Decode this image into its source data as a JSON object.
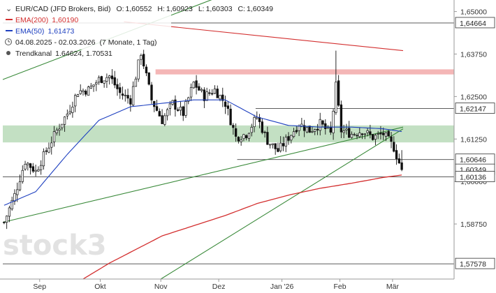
{
  "chart_data": {
    "type": "candlestick",
    "title": "EUR/CAD (JFD Brokers, Bid)",
    "ohlc": {
      "o_label": "O:",
      "o": "1,60552",
      "h_label": "H:",
      "h": "1,60923",
      "l_label": "L:",
      "l": "1,60303",
      "c_label": "C:",
      "c": "1,60349"
    },
    "period": "04.08.2025 - 02.03.2026",
    "period_note": "(7 Monate, 1 Tag)",
    "legend": [
      {
        "name": "EMA(200)",
        "value": "1,60190",
        "color": "#d32f2f"
      },
      {
        "name": "EMA(50)",
        "value": "1,61473",
        "color": "#1e40c0"
      },
      {
        "name": "Trendkanal",
        "value": "1.64624, 1.70531",
        "color": "#555555"
      }
    ],
    "y_ticks": [
      "1,65000",
      "1,63750",
      "1,62500",
      "1,61250",
      "1,60000",
      "1,58750"
    ],
    "y_tick_values": [
      1.65,
      1.6375,
      1.625,
      1.6125,
      1.6,
      1.5875
    ],
    "ylim": [
      1.5713,
      1.6534
    ],
    "x_ticks": [
      "Sep",
      "Okt",
      "Nov",
      "Dez",
      "Jan '26",
      "Feb",
      "Mär"
    ],
    "x_tick_index": [
      14,
      37,
      60,
      82,
      106,
      128,
      148
    ],
    "n_bars": 152,
    "level_labels": [
      {
        "text": "1,64664",
        "value": 1.64664
      },
      {
        "text": "1,62147",
        "value": 1.62147
      },
      {
        "text": "1,60646",
        "value": 1.60646
      },
      {
        "text": "1,60349",
        "value": 1.60349
      },
      {
        "text": "1,60136",
        "value": 1.60136
      },
      {
        "text": "1,57578",
        "value": 1.57578
      }
    ],
    "levels_x_start": [
      {
        "value": 1.64664,
        "start": 0
      },
      {
        "value": 1.62147,
        "start": 96
      },
      {
        "value": 1.60646,
        "start": 89
      },
      {
        "value": 1.60136,
        "start": 0
      },
      {
        "value": 1.57578,
        "start": 0
      }
    ],
    "zones": [
      {
        "from": 1.633,
        "to": 1.6315,
        "start": 58,
        "color": "#f4b6b6"
      },
      {
        "from": 1.6165,
        "to": 1.6115,
        "start": 0,
        "color": "#c3e0c3"
      }
    ],
    "close_anchors": [
      [
        0,
        1.588
      ],
      [
        4,
        1.596
      ],
      [
        8,
        1.606
      ],
      [
        12,
        1.603
      ],
      [
        16,
        1.609
      ],
      [
        20,
        1.615
      ],
      [
        24,
        1.62
      ],
      [
        28,
        1.6265
      ],
      [
        32,
        1.627
      ],
      [
        36,
        1.63
      ],
      [
        40,
        1.631
      ],
      [
        44,
        1.626
      ],
      [
        48,
        1.624
      ],
      [
        52,
        1.638
      ],
      [
        56,
        1.624
      ],
      [
        60,
        1.618
      ],
      [
        64,
        1.623
      ],
      [
        68,
        1.62
      ],
      [
        72,
        1.629
      ],
      [
        76,
        1.625
      ],
      [
        80,
        1.627
      ],
      [
        84,
        1.623
      ],
      [
        88,
        1.613
      ],
      [
        92,
        1.614
      ],
      [
        96,
        1.619
      ],
      [
        100,
        1.612
      ],
      [
        104,
        1.609
      ],
      [
        108,
        1.613
      ],
      [
        112,
        1.617
      ],
      [
        116,
        1.615
      ],
      [
        120,
        1.617
      ],
      [
        124,
        1.614
      ],
      [
        126,
        1.628
      ],
      [
        128,
        1.615
      ],
      [
        132,
        1.614
      ],
      [
        136,
        1.615
      ],
      [
        140,
        1.613
      ],
      [
        144,
        1.614
      ],
      [
        148,
        1.61
      ],
      [
        150,
        1.6055
      ],
      [
        151,
        1.6035
      ]
    ],
    "ema50_anchors": [
      [
        0,
        1.593
      ],
      [
        12,
        1.597
      ],
      [
        24,
        1.608
      ],
      [
        36,
        1.618
      ],
      [
        48,
        1.622
      ],
      [
        60,
        1.623
      ],
      [
        72,
        1.624
      ],
      [
        84,
        1.624
      ],
      [
        96,
        1.619
      ],
      [
        108,
        1.6165
      ],
      [
        120,
        1.616
      ],
      [
        132,
        1.616
      ],
      [
        144,
        1.6155
      ],
      [
        151,
        1.6147
      ]
    ],
    "ema200_anchors": [
      [
        30,
        1.5713
      ],
      [
        40,
        1.576
      ],
      [
        50,
        1.58
      ],
      [
        60,
        1.584
      ],
      [
        72,
        1.587
      ],
      [
        84,
        1.59
      ],
      [
        96,
        1.5935
      ],
      [
        108,
        1.596
      ],
      [
        120,
        1.598
      ],
      [
        132,
        1.5995
      ],
      [
        144,
        1.6012
      ],
      [
        151,
        1.6019
      ]
    ],
    "trendlines": [
      {
        "color": "#d32f2f",
        "points": [
          [
            46,
            1.647
          ],
          [
            152,
            1.6385
          ]
        ]
      },
      {
        "color": "#3a8a3a",
        "points": [
          [
            0,
            1.63
          ],
          [
            152,
            1.675
          ]
        ]
      },
      {
        "color": "#3a8a3a",
        "points": [
          [
            0,
            1.588
          ],
          [
            152,
            1.616
          ]
        ]
      },
      {
        "color": "#3a8a3a",
        "points": [
          [
            60,
            1.5713
          ],
          [
            152,
            1.6155
          ]
        ]
      }
    ],
    "watermark": "stock3",
    "grid": false
  }
}
